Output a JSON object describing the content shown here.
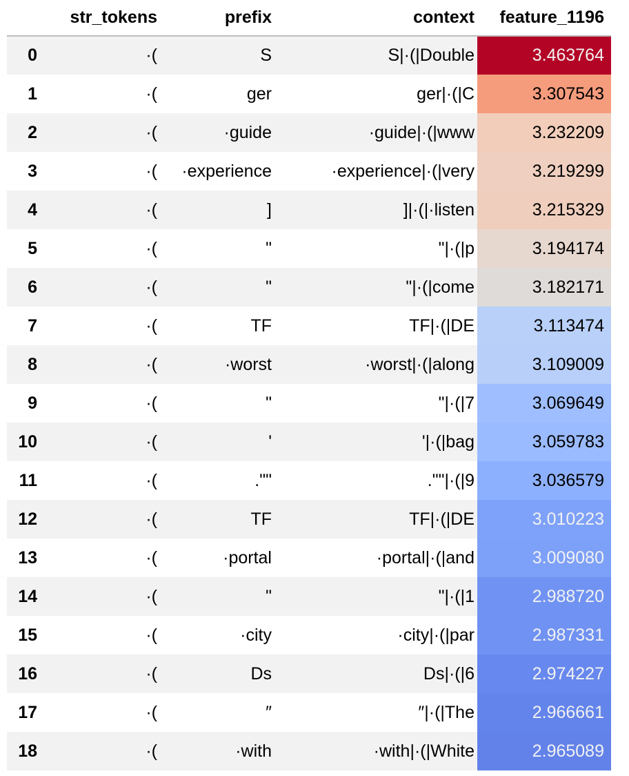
{
  "table": {
    "columns": {
      "index": "",
      "str_tokens": "str_tokens",
      "prefix": "prefix",
      "context": "context",
      "feature": "feature_1196"
    },
    "rows": [
      {
        "index": "0",
        "str_tokens": "·(",
        "prefix": "S",
        "context": "S|·(|Double",
        "feature": "3.463764",
        "bg": "#b40426",
        "fg": "#f1f1f1"
      },
      {
        "index": "1",
        "str_tokens": "·(",
        "prefix": "ger",
        "context": "ger|·(|C",
        "feature": "3.307543",
        "bg": "#f59c7d",
        "fg": "#000000"
      },
      {
        "index": "2",
        "str_tokens": "·(",
        "prefix": "·guide",
        "context": "·guide|·(|www",
        "feature": "3.232209",
        "bg": "#f1cdba",
        "fg": "#000000"
      },
      {
        "index": "3",
        "str_tokens": "·(",
        "prefix": "·experience",
        "context": "·experience|·(|very",
        "feature": "3.219299",
        "bg": "#efcfbf",
        "fg": "#000000"
      },
      {
        "index": "4",
        "str_tokens": "·(",
        "prefix": "]",
        "context": "]|·(|·listen",
        "feature": "3.215329",
        "bg": "#efcebd",
        "fg": "#000000"
      },
      {
        "index": "5",
        "str_tokens": "·(",
        "prefix": "\"",
        "context": "\"|·(|p",
        "feature": "3.194174",
        "bg": "#e6d7cf",
        "fg": "#000000"
      },
      {
        "index": "6",
        "str_tokens": "·(",
        "prefix": "\"",
        "context": "\"|·(|come",
        "feature": "3.182171",
        "bg": "#dfdbd9",
        "fg": "#000000"
      },
      {
        "index": "7",
        "str_tokens": "·(",
        "prefix": "TF",
        "context": "TF|·(|DE",
        "feature": "3.113474",
        "bg": "#b9d0f9",
        "fg": "#000000"
      },
      {
        "index": "8",
        "str_tokens": "·(",
        "prefix": "·worst",
        "context": "·worst|·(|along",
        "feature": "3.109009",
        "bg": "#b7cff9",
        "fg": "#000000"
      },
      {
        "index": "9",
        "str_tokens": "·(",
        "prefix": "\"",
        "context": "\"|·(|7",
        "feature": "3.069649",
        "bg": "#9ebeff",
        "fg": "#000000"
      },
      {
        "index": "10",
        "str_tokens": "·(",
        "prefix": "'",
        "context": "'|·(|bag",
        "feature": "3.059783",
        "bg": "#9abbff",
        "fg": "#000000"
      },
      {
        "index": "11",
        "str_tokens": "·(",
        "prefix": ".\"\"",
        "context": ".\"\"|·(|9",
        "feature": "3.036579",
        "bg": "#8db0fe",
        "fg": "#000000"
      },
      {
        "index": "12",
        "str_tokens": "·(",
        "prefix": "TF",
        "context": "TF|·(|DE",
        "feature": "3.010223",
        "bg": "#7ea1fa",
        "fg": "#f1f1f1"
      },
      {
        "index": "13",
        "str_tokens": "·(",
        "prefix": "·portal",
        "context": "·portal|·(|and",
        "feature": "3.009080",
        "bg": "#7da0f9",
        "fg": "#f1f1f1"
      },
      {
        "index": "14",
        "str_tokens": "·(",
        "prefix": "\"",
        "context": "\"|·(|1",
        "feature": "2.988720",
        "bg": "#7093f3",
        "fg": "#f1f1f1"
      },
      {
        "index": "15",
        "str_tokens": "·(",
        "prefix": "·city",
        "context": "·city|·(|par",
        "feature": "2.987331",
        "bg": "#6f92f3",
        "fg": "#f1f1f1"
      },
      {
        "index": "16",
        "str_tokens": "·(",
        "prefix": "Ds",
        "context": "Ds|·(|6",
        "feature": "2.974227",
        "bg": "#6788ee",
        "fg": "#f1f1f1"
      },
      {
        "index": "17",
        "str_tokens": "·(",
        "prefix": "″",
        "context": "″|·(|The",
        "feature": "2.966661",
        "bg": "#6384eb",
        "fg": "#f1f1f1"
      },
      {
        "index": "18",
        "str_tokens": "·(",
        "prefix": "·with",
        "context": "·with|·(|White",
        "feature": "2.965089",
        "bg": "#6282ea",
        "fg": "#f1f1f1"
      }
    ]
  }
}
